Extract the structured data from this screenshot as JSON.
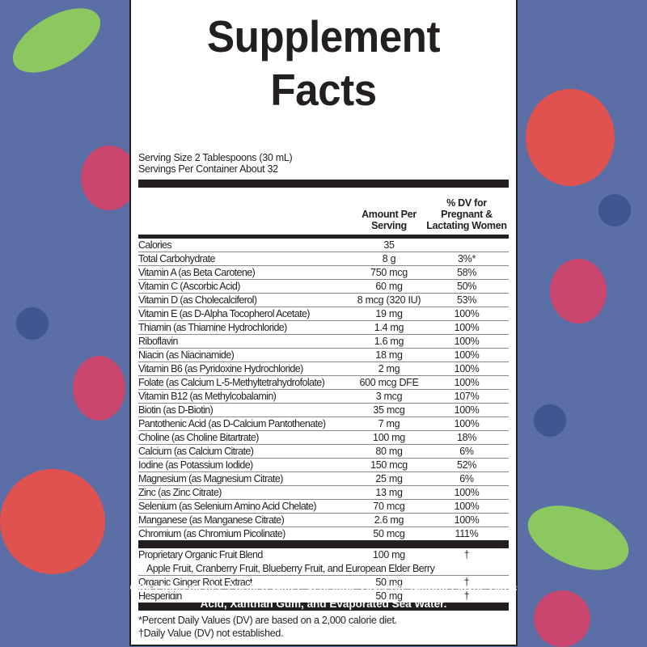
{
  "title": "Supplement Facts",
  "serving_size": "Serving Size 2 Tablespoons (30 mL)",
  "servings_per_container": "Servings Per Container About 32",
  "header": {
    "amount": "Amount Per Serving",
    "dv": "% DV for Pregnant & Lactating Women"
  },
  "rows": [
    {
      "name": "Calories",
      "amount": "35",
      "dv": ""
    },
    {
      "name": "Total Carbohydrate",
      "amount": "8 g",
      "dv": "3%*"
    },
    {
      "name": "Vitamin A (as Beta Carotene)",
      "amount": "750 mcg",
      "dv": "58%"
    },
    {
      "name": "Vitamin C (Ascorbic Acid)",
      "amount": "60 mg",
      "dv": "50%"
    },
    {
      "name": "Vitamin D (as Cholecalciferol)",
      "amount": "8 mcg (320 IU)",
      "dv": "53%"
    },
    {
      "name": "Vitamin E (as D-Alpha Tocopherol Acetate)",
      "amount": "19 mg",
      "dv": "100%"
    },
    {
      "name": "Thiamin (as Thiamine Hydrochloride)",
      "amount": "1.4 mg",
      "dv": "100%"
    },
    {
      "name": "Riboflavin",
      "amount": "1.6 mg",
      "dv": "100%"
    },
    {
      "name": "Niacin (as Niacinamide)",
      "amount": "18 mg",
      "dv": "100%"
    },
    {
      "name": "Vitamin B6 (as Pyridoxine Hydrochloride)",
      "amount": "2 mg",
      "dv": "100%"
    },
    {
      "name": "Folate (as Calcium L-5-Methyltetrahydrofolate)",
      "amount": "600 mcg DFE",
      "dv": "100%"
    },
    {
      "name": "Vitamin B12 (as Methylcobalamin)",
      "amount": "3 mcg",
      "dv": "107%"
    },
    {
      "name": "Biotin (as D-Biotin)",
      "amount": "35 mcg",
      "dv": "100%"
    },
    {
      "name": "Pantothenic Acid (as D-Calcium Pantothenate)",
      "amount": "7 mg",
      "dv": "100%"
    },
    {
      "name": "Choline (as Choline Bitartrate)",
      "amount": "100 mg",
      "dv": "18%"
    },
    {
      "name": "Calcium (as Calcium Citrate)",
      "amount": "80 mg",
      "dv": "6%"
    },
    {
      "name": "Iodine (as Potassium Iodide)",
      "amount": "150 mcg",
      "dv": "52%"
    },
    {
      "name": "Magnesium (as Magnesium Citrate)",
      "amount": "25 mg",
      "dv": "6%"
    },
    {
      "name": "Zinc (as Zinc Citrate)",
      "amount": "13 mg",
      "dv": "100%"
    },
    {
      "name": "Selenium (as Selenium Amino Acid Chelate)",
      "amount": "70 mcg",
      "dv": "100%"
    },
    {
      "name": "Manganese (as Manganese Citrate)",
      "amount": "2.6 mg",
      "dv": "100%"
    },
    {
      "name": "Chromium (as Chromium Picolinate)",
      "amount": "50 mcg",
      "dv": "111%"
    }
  ],
  "blend": {
    "name": "Proprietary Organic Fruit Blend",
    "amount": "100 mg",
    "dv": "†",
    "ingredients": "Apple Fruit, Cranberry Fruit, Blueberry Fruit, and European Elder Berry"
  },
  "rows2": [
    {
      "name": "Organic Ginger Root Extract",
      "amount": "50 mg",
      "dv": "†"
    },
    {
      "name": "Hesperidin",
      "amount": "50 mg",
      "dv": "†"
    }
  ],
  "footnotes": [
    "*Percent Daily Values (DV) are based on a 2,000 calorie diet.",
    "†Daily Value (DV) not established."
  ],
  "other_ingredients": "Other Ingredients: Purified Water, Vegetable Glycerin, Natural Flavor, Citric Acid, Xanthan Gum, and Evaporated Sea Water.",
  "colors": {
    "background": "#5b6ea6",
    "raspberry": "#c9476e",
    "strawberry": "#e0524f",
    "leaf": "#8cc860",
    "blueberry": "#3f5690"
  }
}
